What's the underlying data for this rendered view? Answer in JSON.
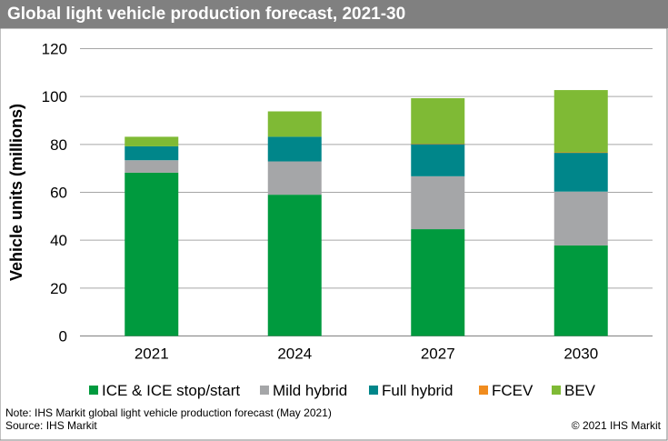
{
  "chart_data": {
    "type": "bar",
    "stacked": true,
    "title": "Global light vehicle production forecast, 2021-30",
    "xlabel": "",
    "ylabel": "Vehicle units (millions)",
    "ylim": [
      0,
      120
    ],
    "yticks": [
      0,
      20,
      40,
      60,
      80,
      100,
      120
    ],
    "grid": true,
    "legend_position": "bottom",
    "categories": [
      "2021",
      "2024",
      "2027",
      "2030"
    ],
    "series": [
      {
        "name": "ICE & ICE stop/start",
        "color": "#009a3e",
        "values": [
          68.2,
          59.0,
          44.6,
          37.8
        ]
      },
      {
        "name": "Mild hybrid",
        "color": "#a5a6a8",
        "values": [
          5.2,
          13.9,
          22.1,
          22.5
        ]
      },
      {
        "name": "Full hybrid",
        "color": "#00868a",
        "values": [
          5.8,
          10.3,
          13.5,
          16.2
        ]
      },
      {
        "name": "FCEV",
        "color": "#f08c1e",
        "values": [
          0,
          0,
          0.1,
          0.2
        ]
      },
      {
        "name": "BEV",
        "color": "#7fba35",
        "values": [
          4.0,
          10.6,
          19.0,
          26.0
        ]
      }
    ]
  },
  "footer": {
    "note": "Note: IHS Markit global light vehicle production forecast (May 2021)",
    "source": "Source: IHS Markit",
    "copyright": "© 2021 IHS Markit"
  }
}
